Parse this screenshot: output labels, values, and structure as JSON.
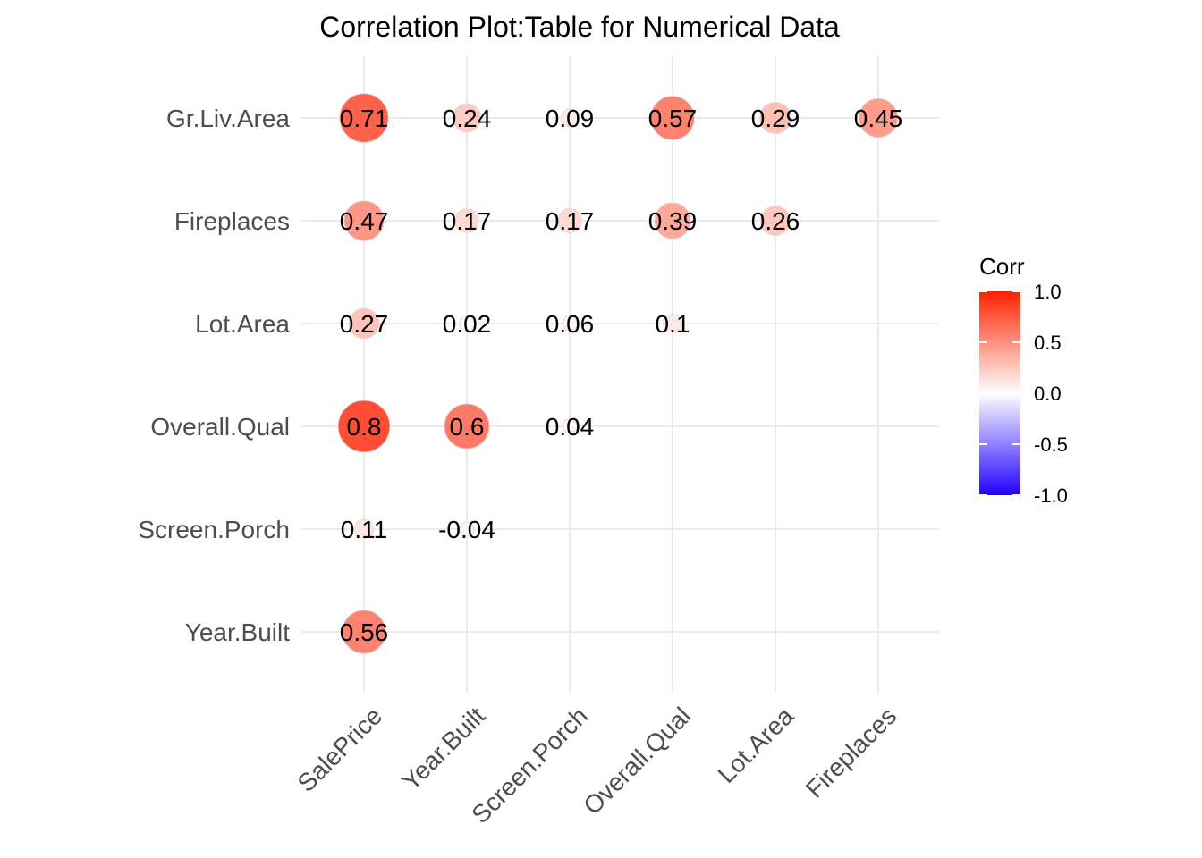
{
  "chart_data": {
    "type": "scatter",
    "title": "Correlation Plot:Table for Numerical Data",
    "x_categories": [
      "SalePrice",
      "Year.Built",
      "Screen.Porch",
      "Overall.Qual",
      "Lot.Area",
      "Fireplaces"
    ],
    "y_categories": [
      "Gr.Liv.Area",
      "Fireplaces",
      "Lot.Area",
      "Overall.Qual",
      "Screen.Porch",
      "Year.Built"
    ],
    "cells": [
      {
        "x": "SalePrice",
        "y": "Gr.Liv.Area",
        "value": 0.71,
        "label": "0.71"
      },
      {
        "x": "Year.Built",
        "y": "Gr.Liv.Area",
        "value": 0.24,
        "label": "0.24"
      },
      {
        "x": "Screen.Porch",
        "y": "Gr.Liv.Area",
        "value": 0.09,
        "label": "0.09"
      },
      {
        "x": "Overall.Qual",
        "y": "Gr.Liv.Area",
        "value": 0.57,
        "label": "0.57"
      },
      {
        "x": "Lot.Area",
        "y": "Gr.Liv.Area",
        "value": 0.29,
        "label": "0.29"
      },
      {
        "x": "Fireplaces",
        "y": "Gr.Liv.Area",
        "value": 0.45,
        "label": "0.45"
      },
      {
        "x": "SalePrice",
        "y": "Fireplaces",
        "value": 0.47,
        "label": "0.47"
      },
      {
        "x": "Year.Built",
        "y": "Fireplaces",
        "value": 0.17,
        "label": "0.17"
      },
      {
        "x": "Screen.Porch",
        "y": "Fireplaces",
        "value": 0.17,
        "label": "0.17"
      },
      {
        "x": "Overall.Qual",
        "y": "Fireplaces",
        "value": 0.39,
        "label": "0.39"
      },
      {
        "x": "Lot.Area",
        "y": "Fireplaces",
        "value": 0.26,
        "label": "0.26"
      },
      {
        "x": "SalePrice",
        "y": "Lot.Area",
        "value": 0.27,
        "label": "0.27"
      },
      {
        "x": "Year.Built",
        "y": "Lot.Area",
        "value": 0.02,
        "label": "0.02"
      },
      {
        "x": "Screen.Porch",
        "y": "Lot.Area",
        "value": 0.06,
        "label": "0.06"
      },
      {
        "x": "Overall.Qual",
        "y": "Lot.Area",
        "value": 0.1,
        "label": "0.1"
      },
      {
        "x": "SalePrice",
        "y": "Overall.Qual",
        "value": 0.8,
        "label": "0.8"
      },
      {
        "x": "Year.Built",
        "y": "Overall.Qual",
        "value": 0.6,
        "label": "0.6"
      },
      {
        "x": "Screen.Porch",
        "y": "Overall.Qual",
        "value": 0.04,
        "label": "0.04"
      },
      {
        "x": "SalePrice",
        "y": "Screen.Porch",
        "value": 0.11,
        "label": "0.11"
      },
      {
        "x": "Year.Built",
        "y": "Screen.Porch",
        "value": -0.04,
        "label": "-0.04"
      },
      {
        "x": "SalePrice",
        "y": "Year.Built",
        "value": 0.56,
        "label": "0.56"
      }
    ],
    "legend": {
      "title": "Corr",
      "ticks": [
        "1.0",
        "0.5",
        "0.0",
        "-0.5",
        "-1.0"
      ],
      "range": [
        -1,
        1
      ],
      "placement": "right"
    },
    "colors": {
      "high": "#ff2200",
      "mid": "#ffffff",
      "low": "#2200ff"
    },
    "grid": true
  }
}
